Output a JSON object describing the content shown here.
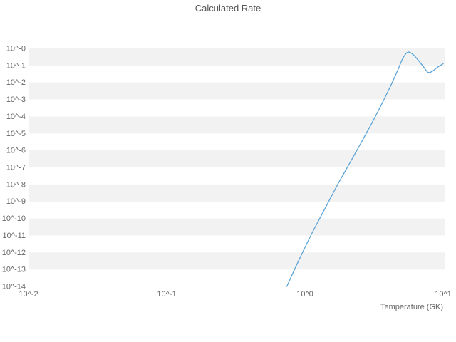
{
  "title": "Calculated Rate",
  "xlabel": "Temperature (GK)",
  "colors": {
    "line": "#5ba3d6",
    "band": "#f2f2f2",
    "plot_bg": "#ffffff",
    "tick_text": "#666666",
    "title_text": "#555555"
  },
  "chart_data": {
    "type": "line",
    "title": "Calculated Rate",
    "xlabel": "Temperature (GK)",
    "ylabel": "",
    "xscale": "log",
    "yscale": "log",
    "grid": "horizontal-bands",
    "legend": "none",
    "xlim_log": [
      -2,
      1
    ],
    "ylim_log": [
      -14,
      0
    ],
    "x_ticks": [
      {
        "label": "10^-2",
        "log": -2
      },
      {
        "label": "10^-1",
        "log": -1
      },
      {
        "label": "10^0",
        "log": 0
      },
      {
        "label": "10^1",
        "log": 1
      }
    ],
    "y_ticks": [
      {
        "label": "10^-0",
        "log": 0
      },
      {
        "label": "10^-1",
        "log": -1
      },
      {
        "label": "10^-2",
        "log": -2
      },
      {
        "label": "10^-3",
        "log": -3
      },
      {
        "label": "10^-4",
        "log": -4
      },
      {
        "label": "10^-5",
        "log": -5
      },
      {
        "label": "10^-6",
        "log": -6
      },
      {
        "label": "10^-7",
        "log": -7
      },
      {
        "label": "10^-8",
        "log": -8
      },
      {
        "label": "10^-9",
        "log": -9
      },
      {
        "label": "10^-10",
        "log": -10
      },
      {
        "label": "10^-11",
        "log": -11
      },
      {
        "label": "10^-12",
        "log": -12
      },
      {
        "label": "10^-13",
        "log": -13
      },
      {
        "label": "10^-14",
        "log": -14
      }
    ],
    "series": [
      {
        "name": "calculated-rate",
        "x_gk": [
          0.74,
          0.91,
          1.12,
          1.38,
          1.7,
          2.09,
          2.57,
          3.09,
          3.63,
          4.17,
          4.68,
          5.13,
          5.56,
          6.03,
          6.61,
          7.24,
          7.76,
          8.32,
          9.12,
          10.0
        ],
        "log10_rate": [
          -14.0,
          -12.4,
          -10.9,
          -9.5,
          -8.1,
          -6.8,
          -5.5,
          -4.3,
          -3.2,
          -2.2,
          -1.3,
          -0.55,
          -0.22,
          -0.35,
          -0.7,
          -1.1,
          -1.4,
          -1.35,
          -1.1,
          -0.9
        ]
      }
    ]
  }
}
